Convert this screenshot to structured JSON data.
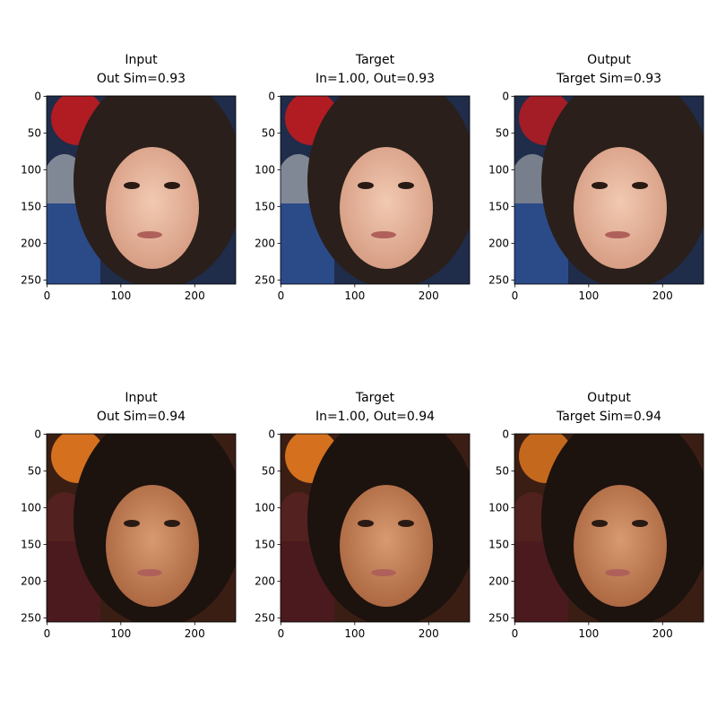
{
  "axes": {
    "xlim": [
      -0.5,
      255.5
    ],
    "ylim": [
      255.5,
      -0.5
    ],
    "xticks": [
      0,
      100,
      200
    ],
    "yticks": [
      0,
      50,
      100,
      150,
      200,
      250
    ]
  },
  "panels": [
    {
      "title": [
        "Input",
        "Out Sim=0.93"
      ]
    },
    {
      "title": [
        "Target",
        "In=1.00, Out=0.93"
      ]
    },
    {
      "title": [
        "Output",
        "Target Sim=0.93"
      ]
    },
    {
      "title": [
        "Input",
        "Out Sim=0.94"
      ]
    },
    {
      "title": [
        "Target",
        "In=1.00, Out=0.94"
      ]
    },
    {
      "title": [
        "Output",
        "Target Sim=0.94"
      ]
    }
  ]
}
